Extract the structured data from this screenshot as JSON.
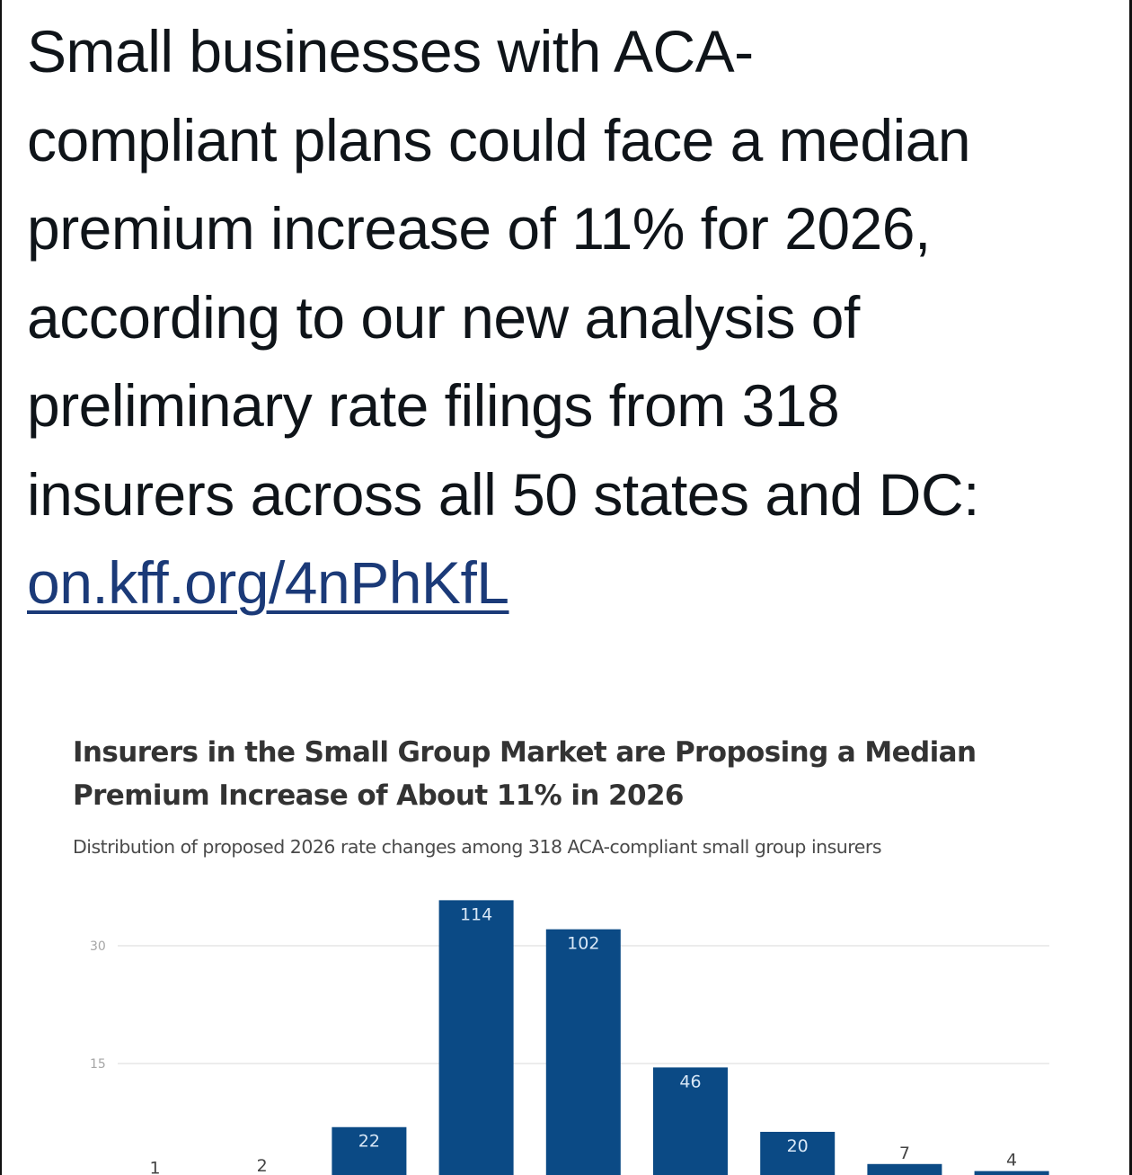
{
  "tweet": {
    "text": "Small businesses with ACA-compliant plans could face a median premium increase of 11% for 2026, according to our new analysis of preliminary rate filings from 318 insurers across all 50 states and DC: ",
    "lines": [
      "Small businesses with ACA-",
      "compliant plans could face a median",
      "premium increase of 11% for 2026,",
      "according to our new analysis of",
      "preliminary rate filings from 318",
      "insurers across all 50 states and DC:"
    ],
    "link": "on.kff.org/4nPhKfL"
  },
  "colors": {
    "bar": "#0b4a85",
    "link": "#1b3a78",
    "gridline": "#ececec"
  },
  "chart_data": {
    "type": "bar",
    "title": "Insurers in the Small Group Market are Proposing a Median Premium Increase of About 11% in 2026",
    "subtitle": "Distribution of proposed 2026 rate changes among 318 ACA-compliant small group insurers",
    "xlabel": "",
    "ylabel": "",
    "y_ticks": [
      15,
      30
    ],
    "y_tick_labels": [
      "15",
      "30"
    ],
    "ylim": [
      0,
      30
    ],
    "grid": true,
    "total": 318,
    "bar_labels": [
      "1",
      "2",
      "22",
      "114",
      "102",
      "46",
      "20",
      "7",
      "4"
    ],
    "series": [
      {
        "name": "Insurers",
        "counts": [
          1,
          2,
          22,
          114,
          102,
          46,
          20,
          7,
          4
        ],
        "values_pct": [
          0.3,
          0.6,
          6.9,
          35.8,
          32.1,
          14.5,
          6.3,
          2.2,
          1.3
        ]
      }
    ],
    "note": "Bars are labeled with insurer counts; the y-axis shows percent of the 318 insurers. Category (x-axis) labels are cropped out of view."
  }
}
